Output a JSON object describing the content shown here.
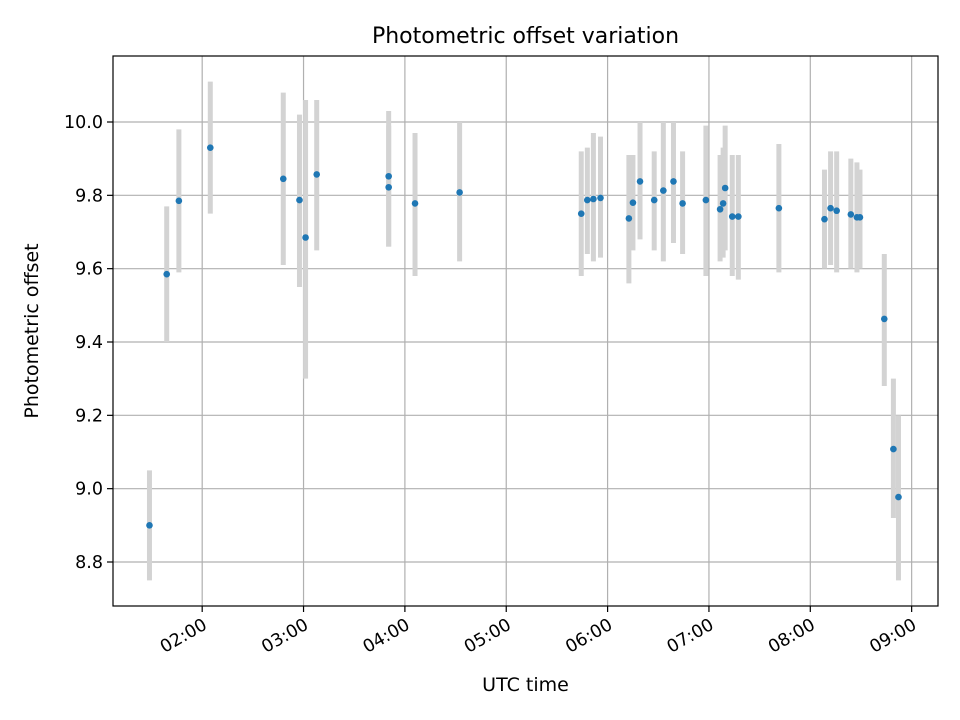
{
  "chart_data": {
    "type": "scatter",
    "title": "Photometric offset variation",
    "xlabel": "UTC time",
    "ylabel": "Photometric offset",
    "x_unit": "hours (UTC)",
    "xlim": [
      1.12,
      9.26
    ],
    "ylim": [
      8.68,
      10.18
    ],
    "x_ticks": [
      2,
      3,
      4,
      5,
      6,
      7,
      8,
      9
    ],
    "x_tick_labels": [
      "02:00",
      "03:00",
      "04:00",
      "05:00",
      "06:00",
      "07:00",
      "08:00",
      "09:00"
    ],
    "y_ticks": [
      8.8,
      9.0,
      9.2,
      9.4,
      9.6,
      9.8,
      10.0
    ],
    "y_tick_labels": [
      "8.8",
      "9.0",
      "9.2",
      "9.4",
      "9.6",
      "9.8",
      "10.0"
    ],
    "grid": true,
    "marker_color": "#1f77b4",
    "errorbar_color": "#d3d3d3",
    "series": [
      {
        "points": [
          {
            "x": 1.48,
            "y": 8.9,
            "lo": 8.75,
            "hi": 9.05
          },
          {
            "x": 1.65,
            "y": 9.585,
            "lo": 9.4,
            "hi": 9.77
          },
          {
            "x": 1.77,
            "y": 9.785,
            "lo": 9.59,
            "hi": 9.98
          },
          {
            "x": 2.08,
            "y": 9.93,
            "lo": 9.75,
            "hi": 10.11
          },
          {
            "x": 2.8,
            "y": 9.845,
            "lo": 9.61,
            "hi": 10.08
          },
          {
            "x": 2.96,
            "y": 9.787,
            "lo": 9.55,
            "hi": 10.02
          },
          {
            "x": 3.02,
            "y": 9.685,
            "lo": 9.3,
            "hi": 10.06
          },
          {
            "x": 3.13,
            "y": 9.857,
            "lo": 9.65,
            "hi": 10.06
          },
          {
            "x": 3.84,
            "y": 9.852,
            "lo": 9.66,
            "hi": 10.03
          },
          {
            "x": 3.84,
            "y": 9.822,
            "lo": 9.66,
            "hi": 9.99
          },
          {
            "x": 4.1,
            "y": 9.778,
            "lo": 9.58,
            "hi": 9.97
          },
          {
            "x": 4.54,
            "y": 9.808,
            "lo": 9.62,
            "hi": 10.0
          },
          {
            "x": 5.74,
            "y": 9.75,
            "lo": 9.58,
            "hi": 9.92
          },
          {
            "x": 5.8,
            "y": 9.787,
            "lo": 9.64,
            "hi": 9.93
          },
          {
            "x": 5.86,
            "y": 9.79,
            "lo": 9.62,
            "hi": 9.97
          },
          {
            "x": 5.93,
            "y": 9.793,
            "lo": 9.63,
            "hi": 9.96
          },
          {
            "x": 6.21,
            "y": 9.737,
            "lo": 9.56,
            "hi": 9.91
          },
          {
            "x": 6.25,
            "y": 9.78,
            "lo": 9.65,
            "hi": 9.91
          },
          {
            "x": 6.32,
            "y": 9.838,
            "lo": 9.68,
            "hi": 10.0
          },
          {
            "x": 6.46,
            "y": 9.787,
            "lo": 9.65,
            "hi": 9.92
          },
          {
            "x": 6.55,
            "y": 9.813,
            "lo": 9.62,
            "hi": 10.0
          },
          {
            "x": 6.65,
            "y": 9.838,
            "lo": 9.67,
            "hi": 10.0
          },
          {
            "x": 6.74,
            "y": 9.778,
            "lo": 9.64,
            "hi": 9.92
          },
          {
            "x": 6.97,
            "y": 9.787,
            "lo": 9.58,
            "hi": 9.99
          },
          {
            "x": 7.11,
            "y": 9.762,
            "lo": 9.62,
            "hi": 9.91
          },
          {
            "x": 7.14,
            "y": 9.778,
            "lo": 9.63,
            "hi": 9.93
          },
          {
            "x": 7.16,
            "y": 9.82,
            "lo": 9.65,
            "hi": 9.99
          },
          {
            "x": 7.23,
            "y": 9.742,
            "lo": 9.58,
            "hi": 9.91
          },
          {
            "x": 7.29,
            "y": 9.742,
            "lo": 9.57,
            "hi": 9.91
          },
          {
            "x": 7.69,
            "y": 9.765,
            "lo": 9.59,
            "hi": 9.94
          },
          {
            "x": 8.14,
            "y": 9.735,
            "lo": 9.6,
            "hi": 9.87
          },
          {
            "x": 8.2,
            "y": 9.765,
            "lo": 9.61,
            "hi": 9.92
          },
          {
            "x": 8.26,
            "y": 9.758,
            "lo": 9.59,
            "hi": 9.92
          },
          {
            "x": 8.4,
            "y": 9.748,
            "lo": 9.6,
            "hi": 9.9
          },
          {
            "x": 8.46,
            "y": 9.74,
            "lo": 9.59,
            "hi": 9.89
          },
          {
            "x": 8.49,
            "y": 9.74,
            "lo": 9.6,
            "hi": 9.87
          },
          {
            "x": 8.73,
            "y": 9.463,
            "lo": 9.28,
            "hi": 9.64
          },
          {
            "x": 8.82,
            "y": 9.108,
            "lo": 8.92,
            "hi": 9.3
          },
          {
            "x": 8.87,
            "y": 8.977,
            "lo": 8.75,
            "hi": 9.2
          }
        ]
      }
    ]
  }
}
